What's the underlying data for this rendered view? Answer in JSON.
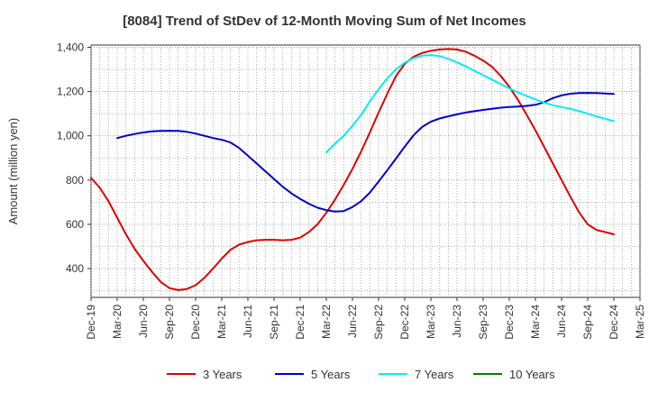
{
  "chart_data": {
    "type": "line",
    "title": "[8084]  Trend of StDev of 12-Month Moving Sum of Net Incomes",
    "xlabel": "",
    "ylabel": "Amount (million yen)",
    "ylim": [
      270,
      1410
    ],
    "yticks": [
      400,
      600,
      800,
      1000,
      1200,
      1400
    ],
    "ytick_labels": [
      "400",
      "600",
      "800",
      "1,000",
      "1,200",
      "1,400"
    ],
    "xlim": [
      "2019-12",
      "2025-03"
    ],
    "xtick_labels": [
      "Dec-19",
      "Mar-20",
      "Jun-20",
      "Sep-20",
      "Dec-20",
      "Mar-21",
      "Jun-21",
      "Sep-21",
      "Dec-21",
      "Mar-22",
      "Jun-22",
      "Sep-22",
      "Dec-22",
      "Mar-23",
      "Jun-23",
      "Sep-23",
      "Dec-23",
      "Mar-24",
      "Jun-24",
      "Sep-24",
      "Dec-24",
      "Mar-25"
    ],
    "grid": true,
    "legend_position": "bottom",
    "series": [
      {
        "name": "3 Years",
        "color": "#dd0000",
        "x": [
          "2019-12",
          "2020-01",
          "2020-02",
          "2020-03",
          "2020-04",
          "2020-05",
          "2020-06",
          "2020-07",
          "2020-08",
          "2020-09",
          "2020-10",
          "2020-11",
          "2020-12",
          "2021-01",
          "2021-02",
          "2021-03",
          "2021-04",
          "2021-05",
          "2021-06",
          "2021-07",
          "2021-08",
          "2021-09",
          "2021-10",
          "2021-11",
          "2021-12",
          "2022-01",
          "2022-02",
          "2022-03",
          "2022-04",
          "2022-05",
          "2022-06",
          "2022-07",
          "2022-08",
          "2022-09",
          "2022-10",
          "2022-11",
          "2022-12",
          "2023-01",
          "2023-02",
          "2023-03",
          "2023-04",
          "2023-05",
          "2023-06",
          "2023-07",
          "2023-08",
          "2023-09",
          "2023-10",
          "2023-11",
          "2023-12",
          "2024-01",
          "2024-02",
          "2024-03",
          "2024-04",
          "2024-05",
          "2024-06",
          "2024-07",
          "2024-08",
          "2024-09",
          "2024-10",
          "2024-11",
          "2024-12"
        ],
        "values": [
          810,
          765,
          705,
          630,
          555,
          490,
          435,
          385,
          340,
          312,
          303,
          308,
          325,
          358,
          400,
          445,
          485,
          508,
          520,
          528,
          530,
          530,
          528,
          530,
          540,
          565,
          600,
          652,
          712,
          778,
          850,
          930,
          1015,
          1105,
          1190,
          1270,
          1325,
          1357,
          1374,
          1384,
          1390,
          1392,
          1390,
          1380,
          1362,
          1340,
          1312,
          1272,
          1222,
          1162,
          1095,
          1025,
          950,
          875,
          800,
          725,
          655,
          600,
          575,
          565,
          555
        ]
      },
      {
        "name": "5 Years",
        "color": "#0000cc",
        "x": [
          "2020-03",
          "2020-04",
          "2020-05",
          "2020-06",
          "2020-07",
          "2020-08",
          "2020-09",
          "2020-10",
          "2020-11",
          "2020-12",
          "2021-01",
          "2021-02",
          "2021-03",
          "2021-04",
          "2021-05",
          "2021-06",
          "2021-07",
          "2021-08",
          "2021-09",
          "2021-10",
          "2021-11",
          "2021-12",
          "2022-01",
          "2022-02",
          "2022-03",
          "2022-04",
          "2022-05",
          "2022-06",
          "2022-07",
          "2022-08",
          "2022-09",
          "2022-10",
          "2022-11",
          "2022-12",
          "2023-01",
          "2023-02",
          "2023-03",
          "2023-04",
          "2023-05",
          "2023-06",
          "2023-07",
          "2023-08",
          "2023-09",
          "2023-10",
          "2023-11",
          "2023-12",
          "2024-01",
          "2024-02",
          "2024-03",
          "2024-04",
          "2024-05",
          "2024-06",
          "2024-07",
          "2024-08",
          "2024-09",
          "2024-10",
          "2024-11",
          "2024-12"
        ],
        "values": [
          990,
          1000,
          1008,
          1015,
          1020,
          1022,
          1023,
          1022,
          1018,
          1010,
          1000,
          990,
          982,
          970,
          945,
          910,
          875,
          840,
          805,
          770,
          740,
          715,
          693,
          675,
          664,
          658,
          660,
          678,
          705,
          743,
          793,
          845,
          897,
          951,
          1002,
          1040,
          1064,
          1078,
          1088,
          1097,
          1105,
          1111,
          1117,
          1122,
          1127,
          1130,
          1132,
          1135,
          1140,
          1152,
          1170,
          1183,
          1190,
          1193,
          1194,
          1193,
          1191,
          1189
        ]
      },
      {
        "name": "7 Years",
        "color": "#00eeee",
        "x": [
          "2022-03",
          "2022-04",
          "2022-05",
          "2022-06",
          "2022-07",
          "2022-08",
          "2022-09",
          "2022-10",
          "2022-11",
          "2022-12",
          "2023-01",
          "2023-02",
          "2023-03",
          "2023-04",
          "2023-05",
          "2023-06",
          "2023-07",
          "2023-08",
          "2023-09",
          "2023-10",
          "2023-11",
          "2023-12",
          "2024-01",
          "2024-02",
          "2024-03",
          "2024-04",
          "2024-05",
          "2024-06",
          "2024-07",
          "2024-08",
          "2024-09",
          "2024-10",
          "2024-11",
          "2024-12"
        ],
        "values": [
          925,
          965,
          1000,
          1045,
          1095,
          1155,
          1210,
          1260,
          1300,
          1330,
          1350,
          1362,
          1365,
          1360,
          1348,
          1332,
          1314,
          1294,
          1274,
          1254,
          1234,
          1214,
          1196,
          1180,
          1165,
          1150,
          1138,
          1130,
          1122,
          1112,
          1100,
          1088,
          1077,
          1066
        ]
      },
      {
        "name": "10 Years",
        "color": "#008000",
        "x": [],
        "values": []
      }
    ]
  }
}
